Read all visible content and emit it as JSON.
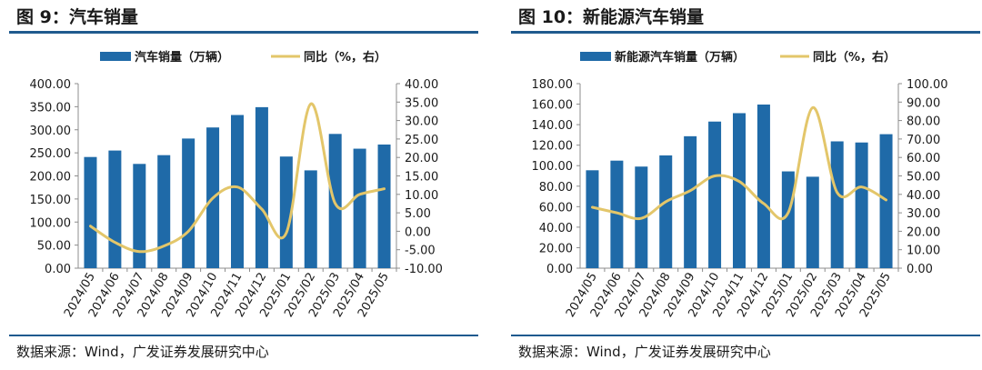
{
  "colors": {
    "bar": "#1f6aa8",
    "line": "#e3c66a",
    "rule": "#1f5a8e",
    "text": "#1a1a1a"
  },
  "panels": [
    {
      "title": "图 9：汽车销量",
      "source": "数据来源：Wind，广发证券发展研究中心",
      "chart_data": {
        "type": "bar",
        "categories": [
          "2024/05",
          "2024/06",
          "2024/07",
          "2024/08",
          "2024/09",
          "2024/10",
          "2024/11",
          "2024/12",
          "2025/01",
          "2025/02",
          "2025/03",
          "2025/04",
          "2025/05"
        ],
        "series": [
          {
            "name": "汽车销量（万辆）",
            "type": "bar",
            "axis": "left",
            "values": [
              241,
              255,
              226,
              245,
              281,
              305,
              332,
              349,
              242,
              212,
              291,
              259,
              268
            ]
          },
          {
            "name": "同比（%，右）",
            "type": "line",
            "axis": "right",
            "values": [
              1.4,
              -3.0,
              -5.5,
              -4.0,
              0.0,
              9.0,
              12.0,
              6.0,
              -0.5,
              34.5,
              7.5,
              10.0,
              11.5
            ]
          }
        ],
        "yleft": {
          "range": [
            0,
            400
          ],
          "ticks": [
            "0.00",
            "50.00",
            "100.00",
            "150.00",
            "200.00",
            "250.00",
            "300.00",
            "350.00",
            "400.00"
          ]
        },
        "yright": {
          "range": [
            -10,
            40
          ],
          "ticks": [
            "-10.00",
            "-5.00",
            "0.00",
            "5.00",
            "10.00",
            "15.00",
            "20.00",
            "25.00",
            "30.00",
            "35.00",
            "40.00"
          ]
        },
        "grid": false,
        "legend": "top-center"
      }
    },
    {
      "title": "图 10：新能源汽车销量",
      "source": "数据来源：Wind，广发证券发展研究中心",
      "chart_data": {
        "type": "bar",
        "categories": [
          "2024/05",
          "2024/06",
          "2024/07",
          "2024/08",
          "2024/09",
          "2024/10",
          "2024/11",
          "2024/12",
          "2025/01",
          "2025/02",
          "2025/03",
          "2025/04",
          "2025/05"
        ],
        "series": [
          {
            "name": "新能源汽车销量（万辆）",
            "type": "bar",
            "axis": "left",
            "values": [
              95.5,
              104.9,
              99.1,
              110.0,
              128.7,
              143.0,
              151.2,
              159.6,
              94.4,
              89.2,
              123.7,
              122.6,
              130.7
            ]
          },
          {
            "name": "同比（%，右）",
            "type": "line",
            "axis": "right",
            "values": [
              33.0,
              30.0,
              27.0,
              36.0,
              42.0,
              50.0,
              47.0,
              35.0,
              30.0,
              87.0,
              41.0,
              44.0,
              37.0
            ]
          }
        ],
        "yleft": {
          "range": [
            0,
            180
          ],
          "ticks": [
            "0.00",
            "20.00",
            "40.00",
            "60.00",
            "80.00",
            "100.00",
            "120.00",
            "140.00",
            "160.00",
            "180.00"
          ]
        },
        "yright": {
          "range": [
            0,
            100
          ],
          "ticks": [
            "0.00",
            "10.00",
            "20.00",
            "30.00",
            "40.00",
            "50.00",
            "60.00",
            "70.00",
            "80.00",
            "90.00",
            "100.00"
          ]
        },
        "grid": false,
        "legend": "top-center"
      }
    }
  ]
}
